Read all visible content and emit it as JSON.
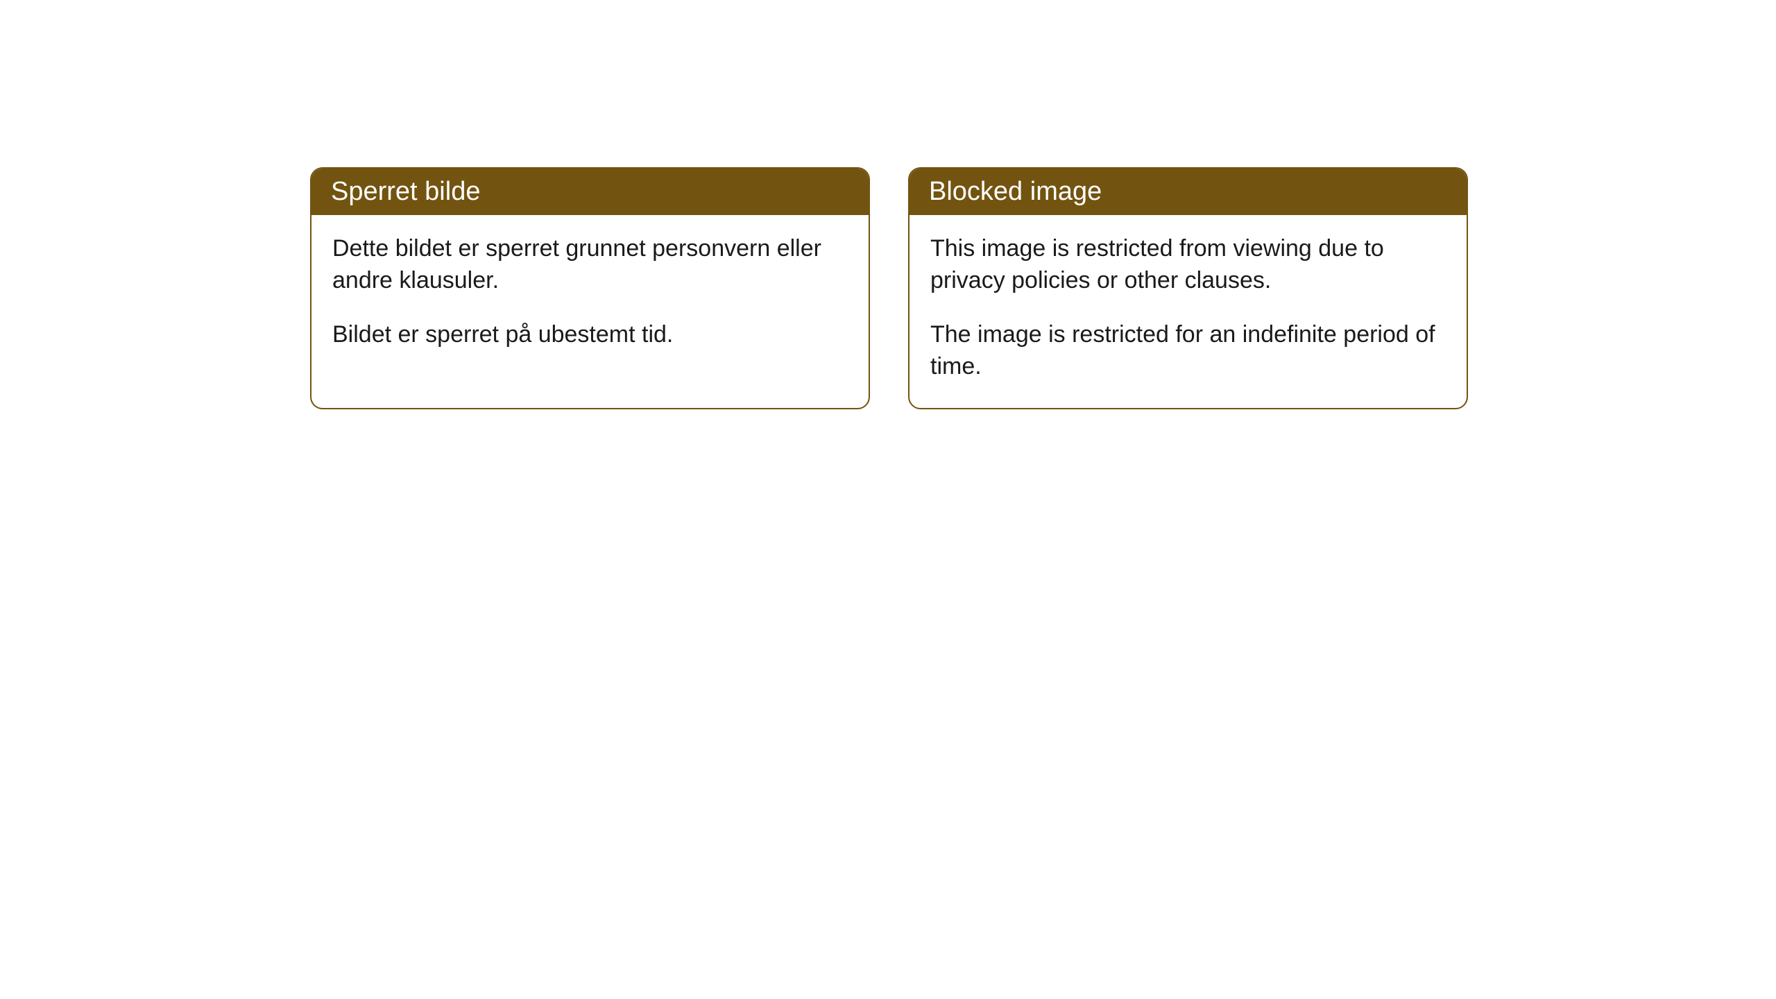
{
  "cards": [
    {
      "title": "Sperret bilde",
      "paragraph1": "Dette bildet er sperret grunnet personvern eller andre klausuler.",
      "paragraph2": "Bildet er sperret på ubestemt tid."
    },
    {
      "title": "Blocked image",
      "paragraph1": "This image is restricted from viewing due to privacy policies or other clauses.",
      "paragraph2": "The image is restricted for an indefinite period of time."
    }
  ],
  "style": {
    "header_background": "#725410",
    "header_text_color": "#ffffff",
    "border_color": "#725410",
    "body_background": "#ffffff",
    "body_text_color": "#1a1a1a",
    "border_radius": 18,
    "header_fontsize": 38,
    "body_fontsize": 34
  }
}
